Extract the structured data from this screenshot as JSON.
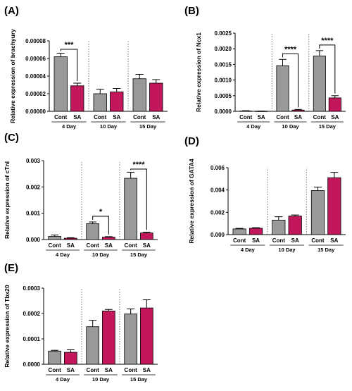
{
  "colors": {
    "cont": "#999999",
    "sa": "#c2185b",
    "axis": "#000000"
  },
  "chart_data": [
    {
      "panel_label": "(A)",
      "type": "bar",
      "ylabel": "Relative expression of brachyury",
      "ylim": [
        0,
        8e-05
      ],
      "yticks": [
        "0.00000",
        "0.00002",
        "0.00004",
        "0.00006",
        "0.00008"
      ],
      "groups": [
        "4 Day",
        "10 Day",
        "15 Day"
      ],
      "bar_labels": [
        "Cont",
        "SA"
      ],
      "series": [
        {
          "values": [
            6.2e-05,
            2e-05,
            3.7e-05
          ],
          "errors": [
            4e-06,
            5e-06,
            5e-06
          ]
        },
        {
          "values": [
            2.9e-05,
            2.2e-05,
            3.2e-05
          ],
          "errors": [
            3e-06,
            4e-06,
            4e-06
          ]
        }
      ],
      "significance": [
        {
          "group": 0,
          "text": "***"
        }
      ]
    },
    {
      "panel_label": "(B)",
      "type": "bar",
      "ylabel": "Relative expression of Ncx1",
      "ylim": [
        0,
        0.0025
      ],
      "yticks": [
        "0.0000",
        "0.0005",
        "0.0010",
        "0.0015",
        "0.0020",
        "0.0025"
      ],
      "groups": [
        "4 Day",
        "10 Day",
        "15 Day"
      ],
      "bar_labels": [
        "Cont",
        "SA"
      ],
      "series": [
        {
          "values": [
            1e-05,
            0.00146,
            0.00177
          ],
          "errors": [
            1e-05,
            0.0002,
            0.00017
          ]
        },
        {
          "values": [
            5e-06,
            4e-05,
            0.00043
          ],
          "errors": [
            3e-06,
            2e-05,
            7e-05
          ]
        }
      ],
      "significance": [
        {
          "group": 1,
          "text": "****"
        },
        {
          "group": 2,
          "text": "****"
        }
      ]
    },
    {
      "panel_label": "(C)",
      "type": "bar",
      "ylabel": "Relative expression of cTnI",
      "ylim": [
        0,
        0.003
      ],
      "yticks": [
        "0.000",
        "0.001",
        "0.002",
        "0.003"
      ],
      "groups": [
        "4 Day",
        "10 Day",
        "15 Day"
      ],
      "bar_labels": [
        "Cont",
        "SA"
      ],
      "series": [
        {
          "values": [
            0.00012,
            0.0006,
            0.00233
          ],
          "errors": [
            5e-05,
            7e-05,
            0.00023
          ]
        },
        {
          "values": [
            5e-05,
            9e-05,
            0.00025
          ],
          "errors": [
            2e-05,
            2e-05,
            3e-05
          ]
        }
      ],
      "significance": [
        {
          "group": 1,
          "text": "*"
        },
        {
          "group": 2,
          "text": "****"
        }
      ]
    },
    {
      "panel_label": "(D)",
      "type": "bar",
      "ylabel": "Relative expression of GATA4",
      "ylim": [
        0,
        0.006
      ],
      "yticks": [
        "0.000",
        "0.002",
        "0.004",
        "0.006"
      ],
      "groups": [
        "4 Day",
        "10 Day",
        "15 Day"
      ],
      "bar_labels": [
        "Cont",
        "SA"
      ],
      "series": [
        {
          "values": [
            0.00051,
            0.0013,
            0.00395
          ],
          "errors": [
            5e-05,
            0.0003,
            0.0003
          ]
        },
        {
          "values": [
            0.00057,
            0.00166,
            0.0051
          ],
          "errors": [
            5e-05,
            0.0001,
            0.00048
          ]
        }
      ],
      "significance": []
    },
    {
      "panel_label": "(E)",
      "type": "bar",
      "ylabel": "Relative expression of Tbx20",
      "ylim": [
        0,
        0.0003
      ],
      "yticks": [
        "0.0000",
        "0.0001",
        "0.0002",
        "0.0003"
      ],
      "groups": [
        "4 Day",
        "10 Day",
        "15 Day"
      ],
      "bar_labels": [
        "Cont",
        "SA"
      ],
      "series": [
        {
          "values": [
            5.2e-05,
            0.000148,
            0.000198
          ],
          "errors": [
            3e-06,
            2.5e-05,
            2e-05
          ]
        },
        {
          "values": [
            4.7e-05,
            0.00021,
            0.000222
          ],
          "errors": [
            1e-05,
            6e-06,
            3.2e-05
          ]
        }
      ],
      "significance": []
    }
  ]
}
